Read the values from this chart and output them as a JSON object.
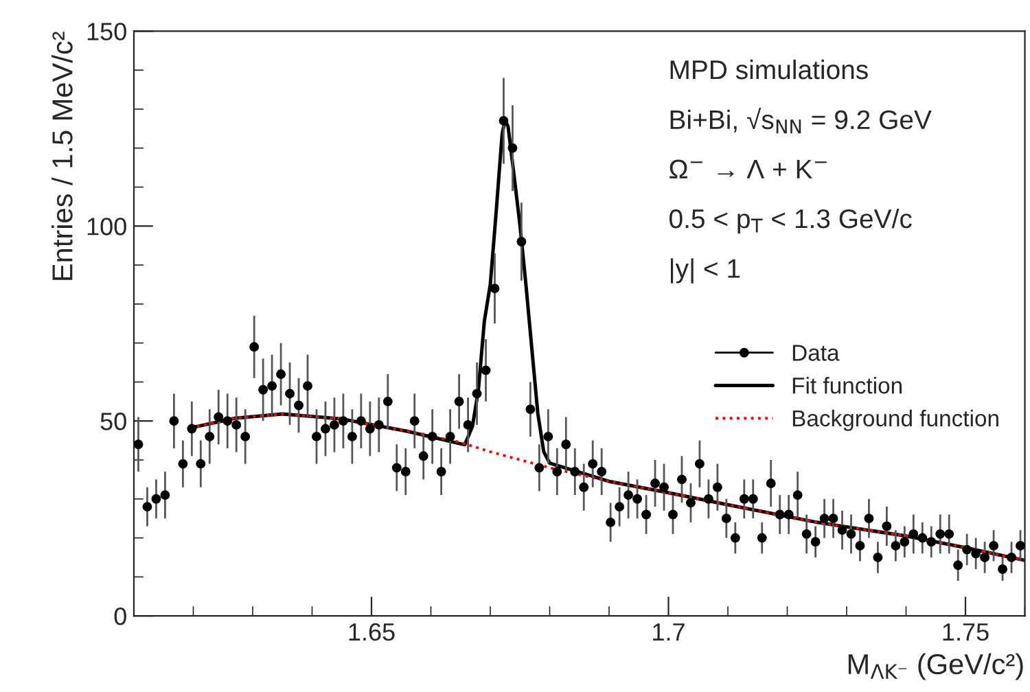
{
  "chart_data": {
    "type": "scatter",
    "xlabel": "M$_{ΛK⁻}$ (GeV/c²)",
    "ylabel": "Entries / 1.5 MeV/c²",
    "annotations": [
      "MPD simulations",
      "Bi+Bi, √s$_{NN}$ = 9.2 GeV",
      "Ω$^{−}$ → Λ + K$^{−}$",
      "0.5 < p$_{T}$ < 1.3 GeV/c",
      "|y| < 1"
    ],
    "xlim": [
      1.61,
      1.76
    ],
    "xticks": [
      1.65,
      1.7,
      1.75
    ],
    "ylim": [
      0,
      150
    ],
    "yticks": [
      0,
      50,
      100,
      150
    ],
    "grid": false,
    "legend": "right",
    "series": [
      {
        "name": "Data",
        "color": "#000000",
        "marker": "circle",
        "x": [
          1.61075,
          1.61225,
          1.61375,
          1.61525,
          1.61675,
          1.61825,
          1.61975,
          1.62125,
          1.62275,
          1.62425,
          1.62575,
          1.62725,
          1.62875,
          1.63025,
          1.63175,
          1.63325,
          1.63475,
          1.63625,
          1.63775,
          1.63925,
          1.64075,
          1.64225,
          1.64375,
          1.64525,
          1.64675,
          1.64825,
          1.64975,
          1.65125,
          1.65275,
          1.65425,
          1.65575,
          1.65725,
          1.65875,
          1.66025,
          1.66175,
          1.66325,
          1.66475,
          1.66625,
          1.66775,
          1.66925,
          1.67075,
          1.67225,
          1.67375,
          1.67525,
          1.67675,
          1.67825,
          1.67975,
          1.68125,
          1.68275,
          1.68425,
          1.68575,
          1.68725,
          1.68875,
          1.69025,
          1.69175,
          1.69325,
          1.69475,
          1.69625,
          1.69775,
          1.69925,
          1.70075,
          1.70225,
          1.70375,
          1.70525,
          1.70675,
          1.70825,
          1.70975,
          1.71125,
          1.71275,
          1.71425,
          1.71575,
          1.71725,
          1.71875,
          1.72025,
          1.72175,
          1.72325,
          1.72475,
          1.72625,
          1.72775,
          1.72925,
          1.73075,
          1.73225,
          1.73375,
          1.73525,
          1.73675,
          1.73825,
          1.73975,
          1.74125,
          1.74275,
          1.74425,
          1.74575,
          1.74725,
          1.74875,
          1.75025,
          1.75175,
          1.75325,
          1.75475,
          1.75625,
          1.75775,
          1.75925
        ],
        "values": [
          44,
          28,
          30,
          31,
          50,
          39,
          48,
          39,
          46,
          51,
          50,
          49,
          46,
          69,
          58,
          59,
          62,
          57,
          54,
          59,
          46,
          48,
          49,
          50,
          46,
          50,
          48,
          49,
          55,
          38,
          37,
          50,
          41,
          46,
          37,
          46,
          55,
          49,
          57,
          63,
          84,
          127,
          120,
          96,
          53,
          38,
          46,
          37,
          44,
          37,
          33,
          39,
          37,
          24,
          28,
          31,
          30,
          26,
          34,
          33,
          26,
          35,
          29,
          39,
          30,
          33,
          25,
          20,
          30,
          30,
          20,
          34,
          26,
          26,
          31,
          21,
          19,
          25,
          25,
          22,
          21,
          18,
          25,
          15,
          23,
          18,
          19,
          21,
          20,
          19,
          21,
          21,
          13,
          17,
          16,
          15,
          18,
          12,
          15,
          18
        ],
        "errors": [
          7,
          5,
          5,
          6,
          7,
          6,
          7,
          6,
          7,
          7,
          7,
          7,
          7,
          8,
          8,
          8,
          8,
          8,
          7,
          8,
          7,
          7,
          7,
          7,
          7,
          7,
          7,
          7,
          7,
          6,
          6,
          7,
          6,
          7,
          6,
          7,
          7,
          7,
          8,
          8,
          9,
          11,
          11,
          10,
          7,
          6,
          7,
          6,
          7,
          6,
          6,
          6,
          6,
          5,
          5,
          6,
          5,
          5,
          6,
          6,
          5,
          6,
          5,
          6,
          5,
          6,
          5,
          4,
          5,
          5,
          4,
          6,
          5,
          5,
          6,
          5,
          4,
          5,
          5,
          5,
          5,
          4,
          5,
          4,
          5,
          4,
          4,
          5,
          4,
          4,
          5,
          5,
          4,
          4,
          4,
          4,
          4,
          3,
          4,
          4
        ],
        "xerrors": [
          0.00075,
          0.00075,
          0.00075,
          0.00075,
          0.00075,
          0.00075,
          0.00075,
          0.00075,
          0.00075,
          0.00075,
          0.00075,
          0.00075,
          0.00075,
          0.00075,
          0.00075,
          0.00075,
          0.00075,
          0.00075,
          0.00075,
          0.00075,
          0.00075,
          0.00075,
          0.00075,
          0.00075,
          0.00075,
          0.00075,
          0.00075,
          0.00075,
          0.00075,
          0.00075,
          0.00075,
          0.00075,
          0.00075,
          0.00075,
          0.00075,
          0.00075,
          0.00075,
          0.00075,
          0.00075,
          0.00075,
          0.00075,
          0.00075,
          0.00075,
          0.00075,
          0.00075,
          0.00075,
          0.00075,
          0.00075,
          0.00075,
          0.00075,
          0.00075,
          0.00075,
          0.00075,
          0.00075,
          0.00075,
          0.00075,
          0.00075,
          0.00075,
          0.00075,
          0.00075,
          0.00075,
          0.00075,
          0.00075,
          0.00075,
          0.00075,
          0.00075,
          0.00075,
          0.00075,
          0.00075,
          0.00075,
          0.00075,
          0.00075,
          0.00075,
          0.00075,
          0.00075,
          0.00075,
          0.00075,
          0.00075,
          0.00075,
          0.00075,
          0.00075,
          0.00075,
          0.00075,
          0.00075,
          0.00075,
          0.00075,
          0.00075,
          0.00075,
          0.00075,
          0.00075,
          0.00075,
          0.00075,
          0.00075,
          0.00075,
          0.00075,
          0.00075,
          0.00075,
          0.00075,
          0.00075,
          0.00075
        ]
      },
      {
        "name": "Fit function",
        "type": "line",
        "color": "#000000",
        "line_style": "solid",
        "x": [
          1.6195,
          1.627,
          1.635,
          1.645,
          1.6559,
          1.6657,
          1.667,
          1.668,
          1.669,
          1.67,
          1.671,
          1.672,
          1.6725,
          1.673,
          1.674,
          1.675,
          1.676,
          1.677,
          1.678,
          1.679,
          1.68,
          1.69,
          1.7,
          1.71,
          1.725,
          1.74,
          1.75,
          1.7598
        ],
        "values": [
          48.2,
          50.7,
          51.8,
          50.5,
          47.4,
          43.9,
          48.6,
          58,
          75.6,
          85,
          103.8,
          123.7,
          127.2,
          125.5,
          113,
          100.2,
          85,
          68.5,
          52,
          42.1,
          39.2,
          34.5,
          31.6,
          28.5,
          24,
          20.5,
          17.5,
          14.3
        ]
      },
      {
        "name": "Background function",
        "type": "line",
        "color": "#ff0000",
        "line_style": "dotted",
        "x": [
          1.6195,
          1.627,
          1.635,
          1.645,
          1.6559,
          1.665,
          1.67,
          1.68,
          1.69,
          1.7,
          1.71,
          1.725,
          1.74,
          1.75,
          1.7598
        ],
        "values": [
          48.2,
          50.7,
          51.8,
          50.5,
          47.4,
          44.5,
          42.1,
          38.0,
          34.5,
          31.6,
          28.5,
          24,
          20.5,
          17.5,
          14.3
        ]
      }
    ]
  }
}
